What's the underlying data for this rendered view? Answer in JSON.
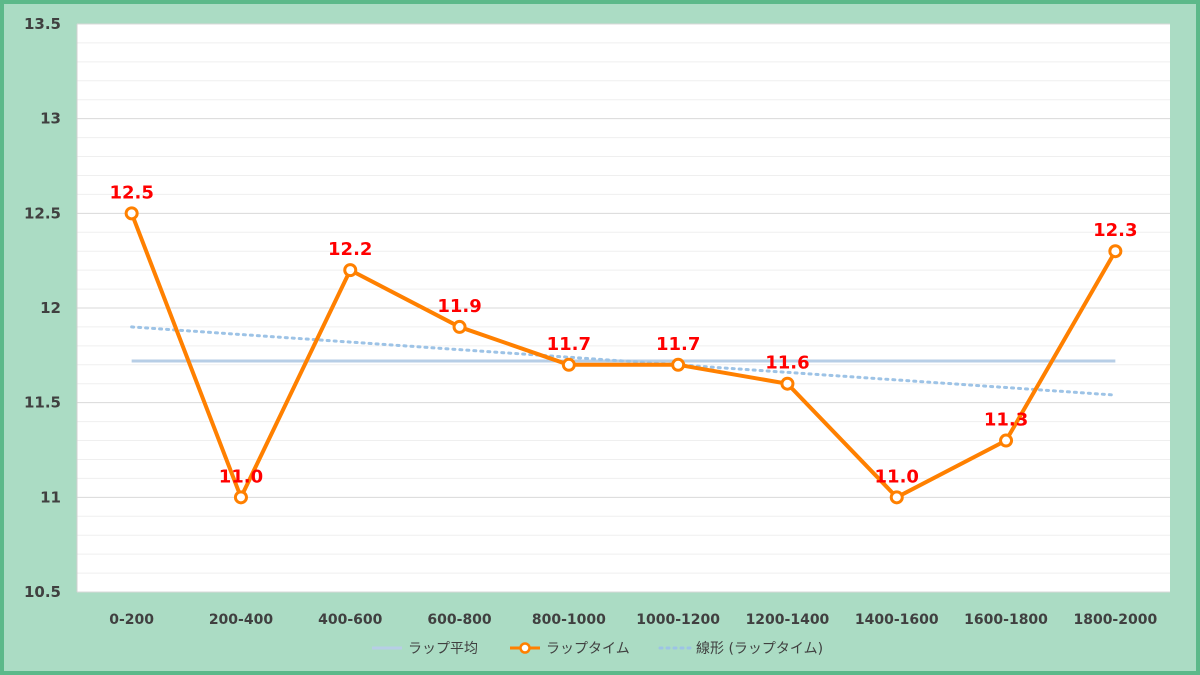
{
  "chart_data": {
    "type": "line",
    "categories": [
      "0-200",
      "200-400",
      "400-600",
      "600-800",
      "800-1000",
      "1000-1200",
      "1200-1400",
      "1400-1600",
      "1600-1800",
      "1800-2000"
    ],
    "series": [
      {
        "name": "ラップ平均",
        "values": [
          11.72,
          11.72,
          11.72,
          11.72,
          11.72,
          11.72,
          11.72,
          11.72,
          11.72,
          11.72
        ],
        "color": "#b7cee6",
        "style": "solid"
      },
      {
        "name": "ラップタイム",
        "values": [
          12.5,
          11.0,
          12.2,
          11.9,
          11.7,
          11.7,
          11.6,
          11.0,
          11.3,
          12.3
        ],
        "data_labels": [
          "12.5",
          "11.0",
          "12.2",
          "11.9",
          "11.7",
          "11.7",
          "11.6",
          "11.0",
          "11.3",
          "12.3"
        ],
        "color": "#ff8000",
        "label_color": "#ff0000",
        "style": "solid-marker"
      },
      {
        "name": "線形 (ラップタイム)",
        "values": [
          11.9,
          11.86,
          11.82,
          11.78,
          11.74,
          11.7,
          11.66,
          11.62,
          11.58,
          11.54
        ],
        "color": "#9dc3e6",
        "style": "dotted"
      }
    ],
    "yticks": [
      "10.5",
      "11",
      "11.5",
      "12",
      "12.5",
      "13",
      "13.5"
    ],
    "ylim": [
      10.5,
      13.5
    ],
    "grid": true,
    "legend_position": "bottom",
    "title": "",
    "xlabel": "",
    "ylabel": "",
    "background_color": "#abdcc4",
    "frame_color": "#5cb98a",
    "plot_color": "#ffffff"
  }
}
